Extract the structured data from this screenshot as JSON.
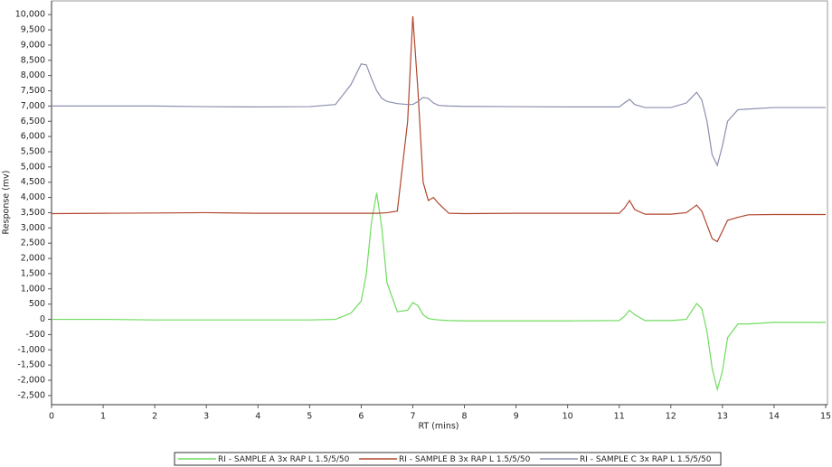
{
  "chart_data": {
    "type": "line",
    "xlabel": "RT (mins)",
    "ylabel": "Response (mv)",
    "x": [
      0,
      1,
      2,
      3,
      4,
      5,
      5.5,
      5.8,
      6.0,
      6.1,
      6.2,
      6.3,
      6.4,
      6.5,
      6.7,
      6.9,
      7.0,
      7.1,
      7.2,
      7.3,
      7.4,
      7.5,
      7.7,
      8,
      9,
      10,
      11,
      11.1,
      11.2,
      11.3,
      11.5,
      12,
      12.3,
      12.5,
      12.6,
      12.7,
      12.8,
      12.9,
      13.0,
      13.1,
      13.3,
      13.5,
      14,
      15
    ],
    "series": [
      {
        "name": "RI - SAMPLE A 3x RAP L 1.5/5/50",
        "color": "#6fdc5e",
        "values": [
          0,
          0,
          -20,
          -20,
          -20,
          -20,
          0,
          200,
          600,
          1500,
          3200,
          4150,
          3000,
          1200,
          250,
          300,
          550,
          450,
          150,
          30,
          0,
          -20,
          -40,
          -50,
          -50,
          -50,
          -40,
          100,
          300,
          150,
          -40,
          -40,
          0,
          520,
          350,
          -400,
          -1600,
          -2300,
          -1700,
          -600,
          -150,
          -150,
          -100,
          -100
        ]
      },
      {
        "name": "RI - SAMPLE B 3x RAP L 1.5/5/50",
        "color": "#b0452c",
        "values": [
          3470,
          3480,
          3490,
          3500,
          3480,
          3480,
          3480,
          3480,
          3480,
          3480,
          3480,
          3480,
          3490,
          3500,
          3550,
          6500,
          9950,
          7500,
          4500,
          3900,
          4000,
          3800,
          3480,
          3470,
          3480,
          3480,
          3480,
          3650,
          3900,
          3600,
          3450,
          3450,
          3500,
          3750,
          3550,
          3100,
          2650,
          2550,
          2900,
          3250,
          3350,
          3430,
          3440,
          3440
        ]
      },
      {
        "name": "RI - SAMPLE C 3x RAP L 1.5/5/50",
        "color": "#8b8fae",
        "values": [
          7000,
          7000,
          7000,
          6980,
          6970,
          6980,
          7050,
          7700,
          8380,
          8350,
          7900,
          7500,
          7250,
          7150,
          7080,
          7050,
          7050,
          7150,
          7280,
          7250,
          7100,
          7020,
          7000,
          6990,
          6980,
          6970,
          6970,
          7100,
          7220,
          7050,
          6950,
          6950,
          7100,
          7450,
          7200,
          6500,
          5400,
          5050,
          5700,
          6500,
          6880,
          6900,
          6950,
          6950
        ]
      }
    ],
    "xlim": [
      0,
      15
    ],
    "xticks": [
      0,
      1,
      2,
      3,
      4,
      5,
      6,
      7,
      8,
      9,
      10,
      11,
      12,
      13,
      14,
      15
    ],
    "ylim": [
      -2800,
      10450
    ],
    "yticks": [
      {
        "value": -2500,
        "label": "-2,500"
      },
      {
        "value": -2000,
        "label": "-2,000"
      },
      {
        "value": -1500,
        "label": "-1,500"
      },
      {
        "value": -1000,
        "label": "-1,000"
      },
      -500,
      0,
      500,
      {
        "value": 1000,
        "label": "1,000"
      },
      {
        "value": 1500,
        "label": "1,500"
      },
      {
        "value": 2000,
        "label": "2,000"
      },
      {
        "value": 2500,
        "label": "2,500"
      },
      {
        "value": 3000,
        "label": "3,000"
      },
      {
        "value": 3500,
        "label": "3,500"
      },
      {
        "value": 4000,
        "label": "4,000"
      },
      {
        "value": 4500,
        "label": "4,500"
      },
      {
        "value": 5000,
        "label": "5,000"
      },
      {
        "value": 5500,
        "label": "5,500"
      },
      {
        "value": 6000,
        "label": "6,000"
      },
      {
        "value": 6500,
        "label": "6,500"
      },
      {
        "value": 7000,
        "label": "7,000"
      },
      {
        "value": 7500,
        "label": "7,500"
      },
      {
        "value": 8000,
        "label": "8,000"
      },
      {
        "value": 8500,
        "label": "8,500"
      },
      {
        "value": 9000,
        "label": "9,000"
      },
      {
        "value": 9500,
        "label": "9,500"
      },
      {
        "value": 10000,
        "label": "10,000"
      }
    ],
    "grid": false
  }
}
